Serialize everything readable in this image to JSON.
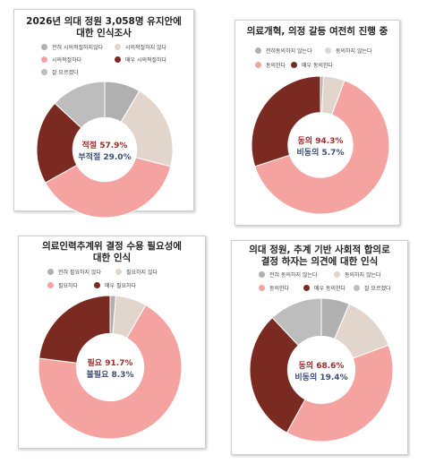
{
  "colors": {
    "strong_no": "#b0b0b0",
    "weak_no": "#e2d6cc",
    "weak_yes": "#f4a3a1",
    "strong_yes": "#7b2a22",
    "neutral": "#bdbdbd",
    "positive_text": "#9a2f2a",
    "negative_text": "#3d4f78"
  },
  "chart_data": [
    {
      "type": "pie",
      "title_lines": [
        "2026년 의대 정원 3,058명 유지안에",
        "대한 인식조사"
      ],
      "legend": [
        "전혀 시의적절하지않다",
        "시의적절하지 않다",
        "시의적절하다",
        "매우 시의적절하다",
        "잘 모르겠다"
      ],
      "slices": [
        {
          "label": "전혀 시의적절하지않다",
          "value": 8.5,
          "color": "strong_no"
        },
        {
          "label": "시의적절하지 않다",
          "value": 20.5,
          "color": "weak_no"
        },
        {
          "label": "시의적절하다",
          "value": 37.9,
          "color": "weak_yes"
        },
        {
          "label": "매우 시의적절하다",
          "value": 20.0,
          "color": "strong_yes"
        },
        {
          "label": "잘 모르겠다",
          "value": 13.1,
          "color": "neutral"
        }
      ],
      "center": [
        "적절 57.9%",
        "부적절 29.0%"
      ]
    },
    {
      "type": "pie",
      "title_lines": [
        "의료개혁, 의정 갈등 여전히 진행 중"
      ],
      "legend": [
        "전혀동의하지 않는다",
        "동의하지 않는다",
        "동의한다",
        "매우 동의한다"
      ],
      "slices": [
        {
          "label": "전혀동의하지 않는다",
          "value": 0.7,
          "color": "strong_no"
        },
        {
          "label": "동의하지 않는다",
          "value": 5.0,
          "color": "weak_no"
        },
        {
          "label": "동의한다",
          "value": 64.3,
          "color": "weak_yes"
        },
        {
          "label": "매우 동의한다",
          "value": 30.0,
          "color": "strong_yes"
        }
      ],
      "center": [
        "동의 94.3%",
        "비동의 5.7%"
      ]
    },
    {
      "type": "pie",
      "title_lines": [
        "의료인력추계위 결정 수용 필요성에",
        "대한 인식"
      ],
      "legend": [
        "전혀 필요하지 않다",
        "필요하지 않다",
        "필요하다",
        "매우 필요하다"
      ],
      "slices": [
        {
          "label": "전혀 필요하지 않다",
          "value": 1.3,
          "color": "strong_no"
        },
        {
          "label": "필요하지 않다",
          "value": 7.0,
          "color": "weak_no"
        },
        {
          "label": "필요하다",
          "value": 68.7,
          "color": "weak_yes"
        },
        {
          "label": "매우 필요하다",
          "value": 23.0,
          "color": "strong_yes"
        }
      ],
      "center": [
        "필요 91.7%",
        "불필요 8.3%"
      ]
    },
    {
      "type": "pie",
      "title_lines": [
        "의대 정원, 추계 기반 사회적 합의로",
        "결정 하자는 의견에 대한 인식"
      ],
      "legend": [
        "전혀 동의하지 않는다",
        "동의하지 않는다",
        "동의한다",
        "매우 동의한다",
        "잘 모르겠다"
      ],
      "slices": [
        {
          "label": "전혀 동의하지 않는다",
          "value": 6.4,
          "color": "strong_no"
        },
        {
          "label": "동의하지 않는다",
          "value": 13.0,
          "color": "weak_no"
        },
        {
          "label": "동의한다",
          "value": 38.6,
          "color": "weak_yes"
        },
        {
          "label": "매우 동의한다",
          "value": 30.0,
          "color": "strong_yes"
        },
        {
          "label": "잘 모르겠다",
          "value": 12.0,
          "color": "neutral"
        }
      ],
      "center": [
        "동의 68.6%",
        "비동의 19.4%"
      ]
    }
  ]
}
